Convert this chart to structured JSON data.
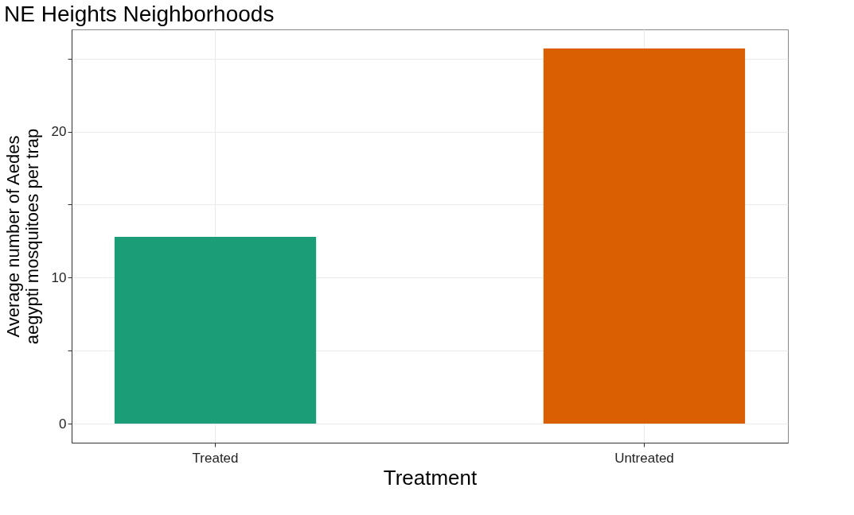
{
  "chart_data": {
    "type": "bar",
    "title": "NE Heights Neighborhoods",
    "xlabel": "Treatment",
    "ylabel": "Average number of Aedes aegypti mosquitoes per trap",
    "categories": [
      "Treated",
      "Untreated"
    ],
    "values": [
      12.8,
      25.7
    ],
    "colors": [
      "#1b9e77",
      "#d95f02"
    ],
    "ylim": [
      -1.3,
      27
    ],
    "yticks": [
      0,
      {
        "value": 5,
        "label": null
      },
      10,
      {
        "value": 15,
        "label": null
      },
      20,
      {
        "value": 25,
        "label": null
      }
    ],
    "grid": true,
    "legend": false
  }
}
